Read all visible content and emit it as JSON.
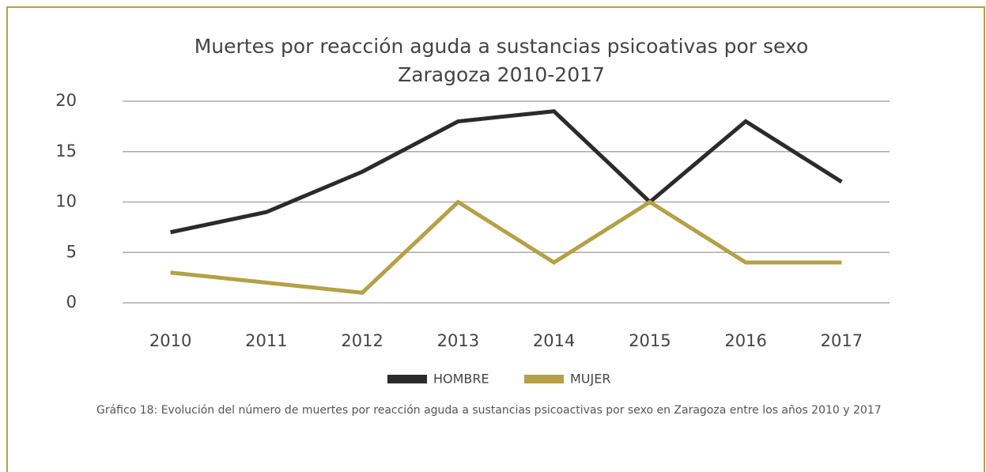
{
  "chart_data": {
    "type": "line",
    "title": "Muertes por reacción aguda a sustancias psicoativas por sexo",
    "subtitle": "Zaragoza 2010-2017",
    "categories": [
      "2010",
      "2011",
      "2012",
      "2013",
      "2014",
      "2015",
      "2016",
      "2017"
    ],
    "series": [
      {
        "name": "HOMBRE",
        "color": "#2b2b2b",
        "values": [
          7,
          9,
          13,
          18,
          19,
          10,
          18,
          12
        ]
      },
      {
        "name": "MUJER",
        "color": "#b5a046",
        "values": [
          3,
          2,
          1,
          10,
          4,
          10,
          4,
          4
        ]
      }
    ],
    "ylim": [
      0,
      20
    ],
    "yticks": [
      0,
      5,
      10,
      15,
      20
    ],
    "grid": true,
    "legend": "bottom",
    "caption": "Gráfico 18: Evolución del número de muertes por reacción aguda a sustancias psicoactivas por sexo en Zaragoza entre los años 2010 y 2017"
  }
}
